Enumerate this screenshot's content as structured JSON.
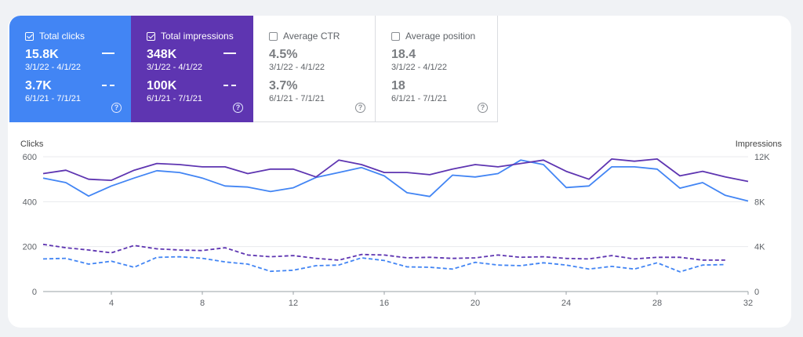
{
  "metrics": [
    {
      "label": "Total clicks",
      "value": "15.8K",
      "date": "3/1/22 - 4/1/22",
      "value2": "3.7K",
      "date2": "6/1/21 - 7/1/21",
      "checked": true,
      "color": "#4285f4"
    },
    {
      "label": "Total impressions",
      "value": "348K",
      "date": "3/1/22 - 4/1/22",
      "value2": "100K",
      "date2": "6/1/21 - 7/1/21",
      "checked": true,
      "color": "#5e35b1"
    },
    {
      "label": "Average CTR",
      "value": "4.5%",
      "date": "3/1/22 - 4/1/22",
      "value2": "3.7%",
      "date2": "6/1/21 - 7/1/21",
      "checked": false
    },
    {
      "label": "Average position",
      "value": "18.4",
      "date": "3/1/22 - 4/1/22",
      "value2": "18",
      "date2": "6/1/21 - 7/1/21",
      "checked": false
    }
  ],
  "help_glyph": "?",
  "chart_data": {
    "type": "line",
    "ylabel_left": "Clicks",
    "ylabel_right": "Impressions",
    "xlim": [
      1,
      32
    ],
    "ylim_left": [
      0,
      600
    ],
    "ylim_right": [
      0,
      12000
    ],
    "x_ticks": [
      4,
      8,
      12,
      16,
      20,
      24,
      28,
      32
    ],
    "y_ticks_left": [
      "0",
      "200",
      "400",
      "600"
    ],
    "y_ticks_right": [
      "0",
      "4K",
      "8K",
      "12K"
    ],
    "grid": true,
    "series": [
      {
        "axis": "left",
        "style": "solid",
        "color": "#4285f4",
        "x": [
          1,
          2,
          3,
          4,
          5,
          6,
          7,
          8,
          9,
          10,
          11,
          12,
          13,
          14,
          15,
          16,
          17,
          18,
          19,
          20,
          21,
          22,
          23,
          24,
          25,
          26,
          27,
          28,
          29,
          30,
          31,
          32
        ],
        "values": [
          505,
          485,
          425,
          470,
          505,
          538,
          530,
          505,
          470,
          465,
          445,
          462,
          508,
          530,
          552,
          515,
          440,
          423,
          518,
          510,
          525,
          585,
          565,
          463,
          470,
          555,
          555,
          545,
          460,
          485,
          428,
          403
        ]
      },
      {
        "axis": "right",
        "style": "solid",
        "color": "#5e35b1",
        "x": [
          1,
          2,
          3,
          4,
          5,
          6,
          7,
          8,
          9,
          10,
          11,
          12,
          13,
          14,
          15,
          16,
          17,
          18,
          19,
          20,
          21,
          22,
          23,
          24,
          25,
          26,
          27,
          28,
          29,
          30,
          31,
          32
        ],
        "values": [
          10500,
          10800,
          10000,
          9900,
          10800,
          11400,
          11300,
          11100,
          11100,
          10500,
          10900,
          10900,
          10200,
          11700,
          11300,
          10600,
          10600,
          10400,
          10900,
          11300,
          11100,
          11400,
          11700,
          10700,
          10000,
          11800,
          11600,
          11800,
          10300,
          10700,
          10200,
          9800
        ]
      },
      {
        "axis": "left",
        "style": "dashed",
        "color": "#4285f4",
        "x": [
          1,
          2,
          3,
          4,
          5,
          6,
          7,
          8,
          9,
          10,
          11,
          12,
          13,
          14,
          15,
          16,
          17,
          18,
          19,
          20,
          21,
          22,
          23,
          24,
          25,
          26,
          27,
          28,
          29,
          30,
          31
        ],
        "values": [
          145,
          148,
          122,
          135,
          108,
          152,
          155,
          148,
          132,
          122,
          90,
          95,
          115,
          118,
          150,
          138,
          110,
          108,
          100,
          130,
          118,
          115,
          128,
          118,
          100,
          112,
          100,
          128,
          88,
          118,
          120
        ]
      },
      {
        "axis": "right",
        "style": "dashed",
        "color": "#5e35b1",
        "x": [
          1,
          2,
          3,
          4,
          5,
          6,
          7,
          8,
          9,
          10,
          11,
          12,
          13,
          14,
          15,
          16,
          17,
          18,
          19,
          20,
          21,
          22,
          23,
          24,
          25,
          26,
          27,
          28,
          29,
          30,
          31
        ],
        "values": [
          4200,
          3900,
          3700,
          3450,
          4100,
          3800,
          3700,
          3650,
          3900,
          3250,
          3100,
          3200,
          2950,
          2800,
          3300,
          3250,
          3000,
          3050,
          2950,
          3000,
          3250,
          3050,
          3100,
          2950,
          2900,
          3200,
          2900,
          3050,
          3050,
          2800,
          2800
        ]
      }
    ]
  }
}
